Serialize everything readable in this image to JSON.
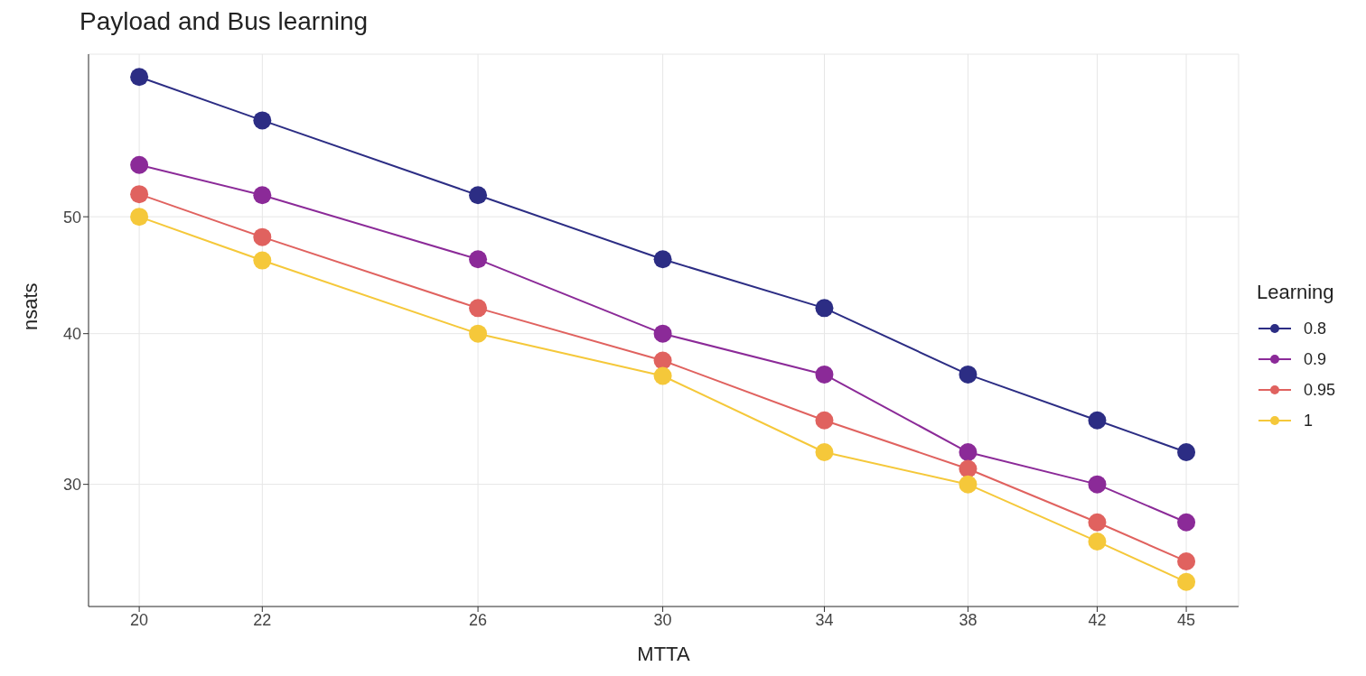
{
  "chart_data": {
    "type": "line",
    "title": "Payload and Bus learning",
    "xlabel": "MTTA",
    "ylabel": "nsats",
    "legend_title": "Learning",
    "x": [
      20,
      22,
      26,
      30,
      34,
      38,
      42,
      45
    ],
    "series": [
      {
        "name": "0.8",
        "color": "#2c2d84",
        "values": [
          65.3,
          60.1,
          52.1,
          46.1,
          42.0,
          37.0,
          33.9,
          31.9
        ]
      },
      {
        "name": "0.9",
        "color": "#8b2a98",
        "values": [
          55.2,
          52.1,
          46.1,
          40.0,
          37.0,
          31.9,
          30.0,
          27.9
        ]
      },
      {
        "name": "0.95",
        "color": "#e0625f",
        "values": [
          52.2,
          48.1,
          42.0,
          38.0,
          33.9,
          30.9,
          27.9,
          25.9
        ]
      },
      {
        "name": "1",
        "color": "#f5c83a",
        "values": [
          50.0,
          46.0,
          40.0,
          36.9,
          31.9,
          30.0,
          26.9,
          24.9
        ]
      }
    ],
    "log": "xy",
    "xlim": [
      19.23,
      46.86
    ],
    "ylim": [
      23.76,
      68.2
    ],
    "xticks": [
      20,
      22,
      26,
      30,
      34,
      38,
      42,
      45
    ],
    "yticks": [
      30,
      40,
      50
    ],
    "grid": true,
    "legend": "right",
    "marker": "circle",
    "line_style": "solid"
  }
}
